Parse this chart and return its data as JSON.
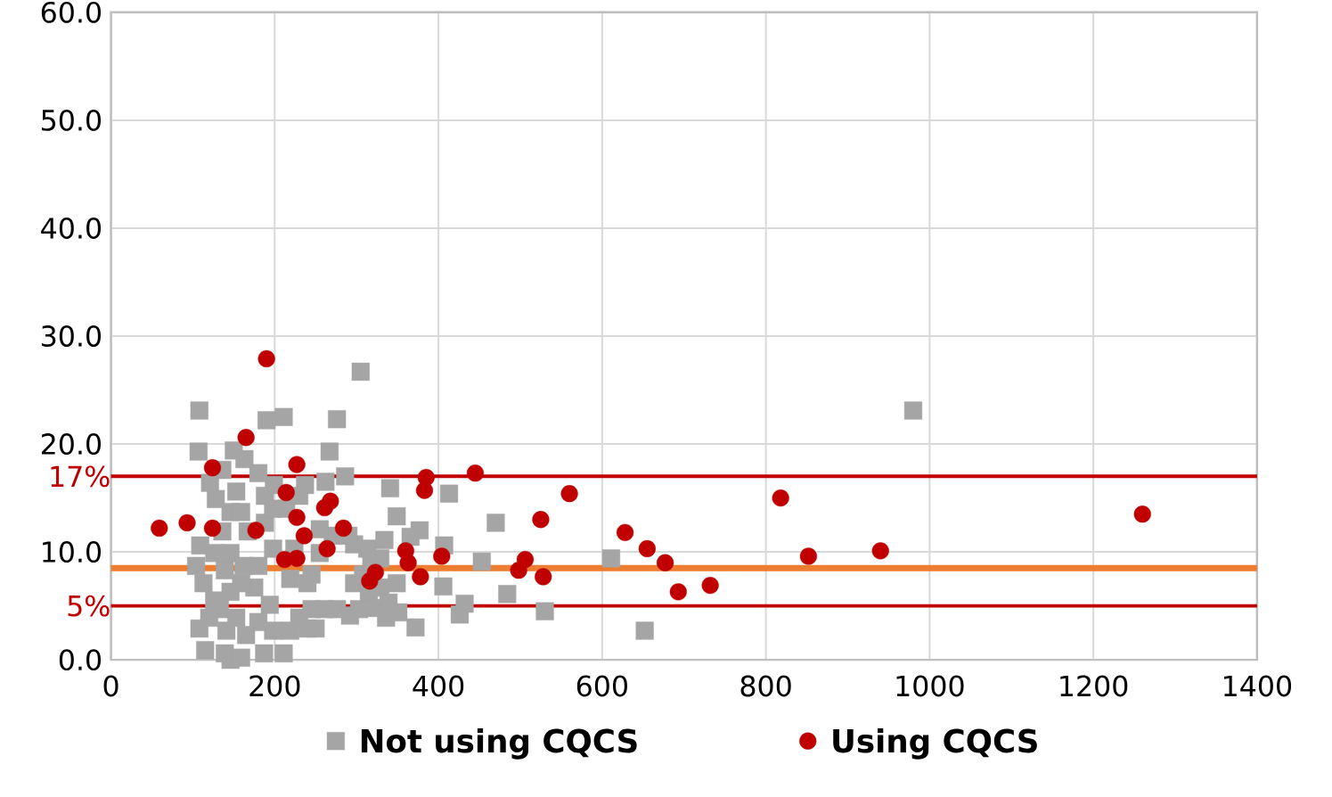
{
  "chart_data": {
    "type": "scatter",
    "xlim": [
      0,
      1400
    ],
    "xticks": [
      0,
      200,
      400,
      600,
      800,
      1000,
      1200,
      1400
    ],
    "ylim": [
      0,
      60
    ],
    "yticks": [
      {
        "value": 0,
        "label": "0.0"
      },
      {
        "value": 10,
        "label": "10.0"
      },
      {
        "value": 20,
        "label": "20.0"
      },
      {
        "value": 30,
        "label": "30.0"
      },
      {
        "value": 40,
        "label": "40.0"
      },
      {
        "value": 50,
        "label": "50.0"
      },
      {
        "value": 60,
        "label": "60.0"
      }
    ],
    "grid": true,
    "legend": "bottom",
    "ref_lines": [
      {
        "axis": "y",
        "value": 17,
        "label": "17%",
        "color": "#c00000"
      },
      {
        "axis": "y",
        "value": 8.5,
        "color": "#ed7d31"
      },
      {
        "axis": "y",
        "value": 5,
        "label": "5%",
        "color": "#c00000"
      }
    ],
    "series": [
      {
        "name": "Not using CQCS",
        "color": "#a5a5a5",
        "marker": "square",
        "x": [
          108,
          107,
          190,
          211,
          276,
          305,
          267,
          150,
          980,
          611,
          652,
          530,
          470,
          484,
          453,
          426,
          432,
          406,
          407,
          413,
          372,
          341,
          349,
          377,
          366,
          336,
          351,
          286,
          262,
          237,
          199,
          180,
          163,
          136,
          121,
          128,
          153,
          146,
          159,
          109,
          104,
          113,
          108,
          115,
          139,
          146,
          159,
          141,
          133,
          153,
          165,
          180,
          187,
          211,
          198,
          194,
          175,
          159,
          139,
          126,
          146,
          136,
          167,
          188,
          198,
          224,
          219,
          240,
          245,
          230,
          219,
          240,
          250,
          261,
          276,
          292,
          303,
          297,
          308,
          329,
          318,
          329,
          334,
          313,
          297,
          290,
          271,
          255,
          245,
          255,
          230,
          214,
          198,
          188,
          180,
          162,
          146,
          126,
          120,
          349,
          339,
          318,
          315
        ],
        "values": [
          23.1,
          19.3,
          22.2,
          22.5,
          22.3,
          26.7,
          19.3,
          19.4,
          23.1,
          9.4,
          2.7,
          4.5,
          12.7,
          6.1,
          9.1,
          4.2,
          5.2,
          6.8,
          10.6,
          15.4,
          3.0,
          15.9,
          13.3,
          12.0,
          11.4,
          3.9,
          4.4,
          17.0,
          16.5,
          16.2,
          16.2,
          17.3,
          18.6,
          17.6,
          16.4,
          14.9,
          15.6,
          13.7,
          13.7,
          10.6,
          8.7,
          7.1,
          2.9,
          0.9,
          0.6,
          0.0,
          0.2,
          2.7,
          4.7,
          3.9,
          2.3,
          3.5,
          0.6,
          0.6,
          2.7,
          5.1,
          6.7,
          7.1,
          8.3,
          9.9,
          9.9,
          11.9,
          11.9,
          12.7,
          10.3,
          10.3,
          7.5,
          7.1,
          4.7,
          3.9,
          2.7,
          2.9,
          2.9,
          4.7,
          4.7,
          4.1,
          4.7,
          7.1,
          7.9,
          6.7,
          9.1,
          9.4,
          11.1,
          10.3,
          10.7,
          11.5,
          11.5,
          9.9,
          7.9,
          12.1,
          15.2,
          14.0,
          14.0,
          15.2,
          8.7,
          8.7,
          6.3,
          5.5,
          3.9,
          7.1,
          5.3,
          4.8,
          6.3
        ]
      },
      {
        "name": "Using CQCS",
        "color": "#c00000",
        "marker": "circle",
        "x": [
          59,
          93,
          124,
          124,
          165,
          177,
          190,
          214,
          212,
          227,
          227,
          227,
          236,
          261,
          268,
          264,
          284,
          323,
          316,
          360,
          363,
          378,
          385,
          383,
          445,
          404,
          560,
          525,
          506,
          498,
          528,
          628,
          655,
          677,
          693,
          732,
          818,
          852,
          940,
          1260
        ],
        "values": [
          12.2,
          12.7,
          17.8,
          12.2,
          20.6,
          12.0,
          27.9,
          15.5,
          9.3,
          9.4,
          18.1,
          13.2,
          11.5,
          14.1,
          14.7,
          10.3,
          12.2,
          8.1,
          7.3,
          10.1,
          9.0,
          7.7,
          16.9,
          15.7,
          17.3,
          9.6,
          15.4,
          13.0,
          9.3,
          8.3,
          7.7,
          11.8,
          10.3,
          9.0,
          6.3,
          6.9,
          15.0,
          9.6,
          10.1,
          13.5
        ]
      }
    ]
  }
}
